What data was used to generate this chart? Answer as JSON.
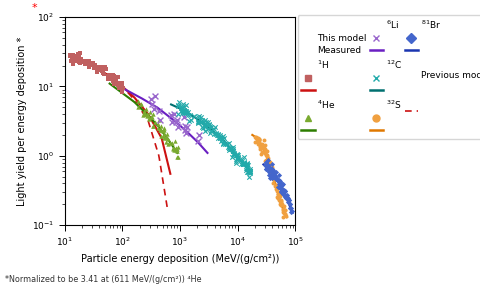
{
  "xlabel": "Particle energy deposition (MeV/(g/cm²))",
  "ylabel": "Light yield per energy deposition *",
  "xlim_log": [
    1,
    5
  ],
  "ylim_log": [
    -1,
    2
  ],
  "footnote": "*Normalized to be 3.41 at (611 MeV/(g/cm²)) ⁴He",
  "colors": {
    "H": {
      "model": "#cc1111",
      "mark": "#c06060"
    },
    "He": {
      "model": "#2d7d00",
      "mark": "#7aaa30"
    },
    "Li": {
      "model": "#6a1fc2",
      "mark": "#9966cc"
    },
    "C": {
      "model": "#007070",
      "mark": "#22aaaa"
    },
    "S": {
      "model": "#e07800",
      "mark": "#f0a040"
    },
    "Br": {
      "model": "#1a35b0",
      "mark": "#4466cc"
    }
  }
}
